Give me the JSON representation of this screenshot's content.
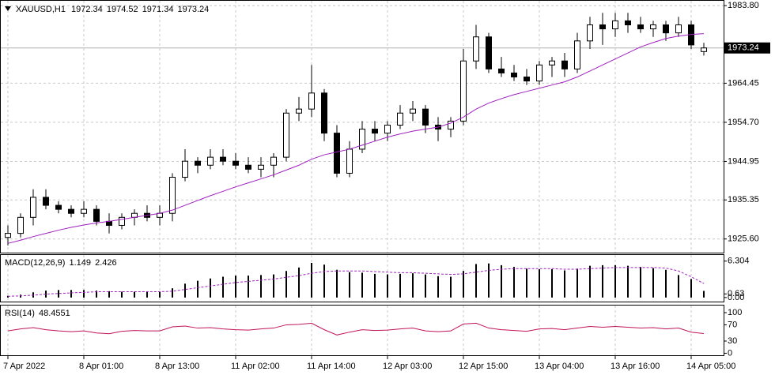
{
  "chart_data": [
    {
      "type": "candlestick",
      "title": "XAUUSD,H1",
      "categories": [
        "7 Apr 2022",
        null,
        null,
        null,
        null,
        null,
        "8 Apr 01:00",
        null,
        null,
        null,
        null,
        null,
        "8 Apr 13:00",
        null,
        null,
        null,
        null,
        null,
        "11 Apr 02:00",
        null,
        null,
        null,
        null,
        null,
        "11 Apr 14:00",
        null,
        null,
        null,
        null,
        null,
        "12 Apr 03:00",
        null,
        null,
        null,
        null,
        null,
        "12 Apr 15:00",
        null,
        null,
        null,
        null,
        null,
        "13 Apr 04:00",
        null,
        null,
        null,
        null,
        null,
        "13 Apr 16:00",
        null,
        null,
        null,
        null,
        null,
        "14 Apr 05:00",
        null
      ],
      "open": [
        1926,
        1927,
        1931,
        1936,
        1934,
        1933,
        1932,
        1933,
        1930,
        1929,
        1931,
        1932,
        1931,
        1932,
        1941,
        1945,
        1944,
        1946,
        1945,
        1944,
        1943,
        1944,
        1946,
        1957,
        1958,
        1962,
        1952,
        1942,
        1948,
        1953,
        1952,
        1954,
        1957,
        1958,
        1954,
        1953,
        1955,
        1970,
        1976,
        1968,
        1967,
        1966,
        1965,
        1969,
        1970,
        1968,
        1975,
        1979,
        1978,
        1980,
        1979,
        1978,
        1979,
        1977,
        1979,
        1972.34
      ],
      "high": [
        1929,
        1932,
        1938,
        1938,
        1935,
        1934,
        1935,
        1934,
        1932,
        1932,
        1933,
        1934,
        1934,
        1942,
        1948,
        1946,
        1948,
        1948,
        1947,
        1946,
        1946,
        1947,
        1958,
        1961,
        1969,
        1963,
        1954,
        1950,
        1955,
        1955,
        1955,
        1959,
        1960,
        1959,
        1956,
        1956,
        1973,
        1979,
        1977,
        1971,
        1969,
        1968,
        1970,
        1971,
        1972,
        1977,
        1981,
        1982,
        1982,
        1982,
        1981,
        1980,
        1980,
        1981,
        1980,
        1974.52
      ],
      "low": [
        1924,
        1926,
        1929,
        1933,
        1932,
        1931,
        1931,
        1929,
        1927,
        1928,
        1929,
        1930,
        1929,
        1930,
        1940,
        1942,
        1943,
        1944,
        1943,
        1942,
        1941,
        1941,
        1945,
        1955,
        1956,
        1950,
        1941,
        1941,
        1947,
        1950,
        1950,
        1953,
        1955,
        1952,
        1950,
        1951,
        1954,
        1968,
        1967,
        1966,
        1965,
        1964,
        1964,
        1966,
        1966,
        1967,
        1973,
        1974,
        1976,
        1977,
        1977,
        1976,
        1975,
        1976,
        1973,
        1971.34
      ],
      "close": [
        1927,
        1931,
        1936,
        1934,
        1933,
        1932,
        1933,
        1930,
        1929,
        1931,
        1932,
        1931,
        1932,
        1941,
        1945,
        1944,
        1946,
        1945,
        1944,
        1943,
        1944,
        1946,
        1957,
        1958,
        1962,
        1952,
        1942,
        1948,
        1953,
        1952,
        1954,
        1957,
        1958,
        1954,
        1953,
        1955,
        1970,
        1976,
        1968,
        1967,
        1966,
        1965,
        1969,
        1970,
        1968,
        1975,
        1979,
        1978,
        1980,
        1979,
        1978,
        1979,
        1977,
        1979,
        1974,
        1973.24
      ],
      "ma_values": [
        1924.5,
        1925.3,
        1926.2,
        1927,
        1927.8,
        1928.5,
        1929.1,
        1929.6,
        1930,
        1930.5,
        1931,
        1931.5,
        1932,
        1932.8,
        1934,
        1935.2,
        1936.4,
        1937.5,
        1938.6,
        1939.6,
        1940.6,
        1941.6,
        1942.8,
        1944,
        1945.5,
        1946.6,
        1947.3,
        1948,
        1949,
        1950,
        1951,
        1951.8,
        1952.5,
        1953,
        1953.5,
        1954.5,
        1956,
        1958,
        1959.5,
        1960.6,
        1961.6,
        1962.4,
        1963.2,
        1964,
        1964.8,
        1966,
        1967.5,
        1969,
        1970.5,
        1972,
        1973.5,
        1974.6,
        1975.6,
        1976.2,
        1976.6,
        1976.8
      ],
      "ma_color": "#a020c0",
      "ylim": [
        1922.2,
        1985.2
      ],
      "yticks": [
        {
          "value": 1983.8,
          "label": "1983.80"
        },
        {
          "value": 1964.45,
          "label": "1964.45"
        },
        {
          "value": 1954.7,
          "label": "1954.70"
        },
        {
          "value": 1944.95,
          "label": "1944.95"
        },
        {
          "value": 1935.35,
          "label": "1935.35"
        },
        {
          "value": 1925.6,
          "label": "1925.60"
        }
      ],
      "grid": true
    },
    {
      "type": "macd",
      "title": "MACD(12,26,9)",
      "values": [
        0.3,
        0.5,
        0.9,
        1.2,
        1.3,
        1.3,
        1.3,
        1.2,
        1.1,
        1.0,
        1.0,
        1.0,
        1.0,
        1.6,
        2.4,
        2.9,
        3.3,
        3.6,
        3.8,
        3.8,
        3.9,
        4.0,
        4.6,
        5.2,
        6.0,
        5.7,
        4.8,
        4.4,
        4.3,
        4.1,
        4.0,
        4.1,
        4.2,
        4.0,
        3.7,
        3.6,
        4.6,
        5.8,
        5.9,
        5.6,
        5.3,
        5.0,
        4.9,
        4.9,
        4.7,
        5.0,
        5.5,
        5.6,
        5.6,
        5.5,
        5.3,
        5.1,
        4.8,
        3.9,
        3.2,
        1.149
      ],
      "signal": [
        0.2,
        0.3,
        0.4,
        0.6,
        0.7,
        0.8,
        0.9,
        1.0,
        1.0,
        1.0,
        1.0,
        1.0,
        1.0,
        1.1,
        1.4,
        1.7,
        2.0,
        2.3,
        2.6,
        2.8,
        3.0,
        3.2,
        3.5,
        3.8,
        4.2,
        4.5,
        4.6,
        4.6,
        4.6,
        4.5,
        4.4,
        4.3,
        4.3,
        4.2,
        4.1,
        4.0,
        4.1,
        4.4,
        4.7,
        4.9,
        5.0,
        5.0,
        5.0,
        5.0,
        4.9,
        4.9,
        5.0,
        5.1,
        5.2,
        5.2,
        5.2,
        5.2,
        5.1,
        4.6,
        3.6,
        2.426
      ],
      "color": "#000000",
      "signal_color": "#a020c0",
      "ylim": [
        -0.7,
        7.5
      ],
      "yticks": [
        6.304,
        0.63,
        {
          "value": 0,
          "label": "0.00"
        }
      ]
    },
    {
      "type": "line",
      "title": "RSI(14)",
      "values": [
        55,
        60,
        63,
        58,
        55,
        53,
        55,
        50,
        48,
        54,
        56,
        55,
        55,
        65,
        67,
        62,
        63,
        60,
        58,
        57,
        60,
        62,
        70,
        71,
        74,
        58,
        45,
        52,
        58,
        56,
        57,
        60,
        62,
        55,
        53,
        55,
        72,
        74,
        62,
        58,
        56,
        54,
        60,
        61,
        58,
        62,
        66,
        64,
        66,
        64,
        62,
        63,
        60,
        62,
        52,
        48.4551
      ],
      "color": "#c0145a",
      "ylim": [
        -5,
        119.5
      ],
      "yticks": [
        100,
        70,
        30,
        0
      ]
    }
  ]
}
